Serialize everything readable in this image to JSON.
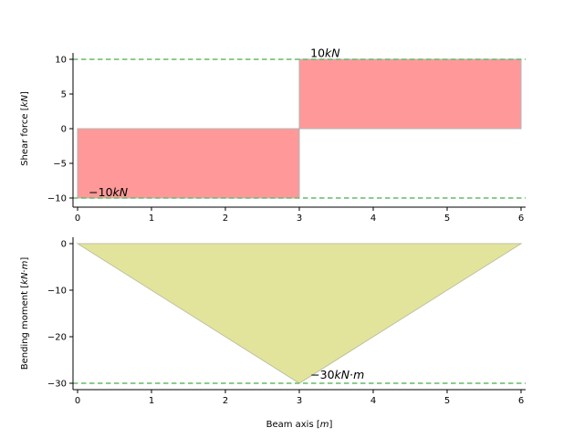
{
  "chart_data": [
    {
      "type": "area",
      "title": "",
      "xlabel": "",
      "ylabel": "Shear force",
      "yunit": "kN",
      "xlim": [
        0,
        6
      ],
      "ylim": [
        -10,
        10
      ],
      "xticks": [
        "0",
        "1",
        "2",
        "3",
        "4",
        "5",
        "6"
      ],
      "yticks": [
        "−10",
        "−5",
        "0",
        "5",
        "10"
      ],
      "series": [
        {
          "x": [
            0,
            0,
            3,
            3,
            6,
            6
          ],
          "y": [
            0,
            -10,
            -10,
            10,
            10,
            0
          ],
          "fill": "#ff9999",
          "edge": "#b3b3b3"
        }
      ],
      "reference_lines": [
        {
          "y": 10,
          "color": "#66bb66"
        },
        {
          "y": -10,
          "color": "#66bb66"
        }
      ],
      "annotations": [
        {
          "text": "10kN",
          "x": 3.15,
          "y": 10.3
        },
        {
          "text": "−10kN",
          "x": 0.15,
          "y": -9.75
        }
      ]
    },
    {
      "type": "area",
      "title": "",
      "xlabel": "Beam axis",
      "xunit": "m",
      "ylabel": "Bending moment",
      "yunit": "kN·m",
      "xlim": [
        0,
        6
      ],
      "ylim": [
        -30,
        0
      ],
      "xticks": [
        "0",
        "1",
        "2",
        "3",
        "4",
        "5",
        "6"
      ],
      "yticks": [
        "−30",
        "−20",
        "−10",
        "0"
      ],
      "series": [
        {
          "x": [
            0,
            3,
            6
          ],
          "y": [
            0,
            -30,
            0
          ],
          "fill": "#e3e49c",
          "edge": "#bfbfa0"
        }
      ],
      "reference_lines": [
        {
          "y": -30,
          "color": "#66bb66"
        }
      ],
      "annotations": [
        {
          "text": "−30kN·m",
          "x": 3.15,
          "y": -29.0
        }
      ]
    }
  ]
}
